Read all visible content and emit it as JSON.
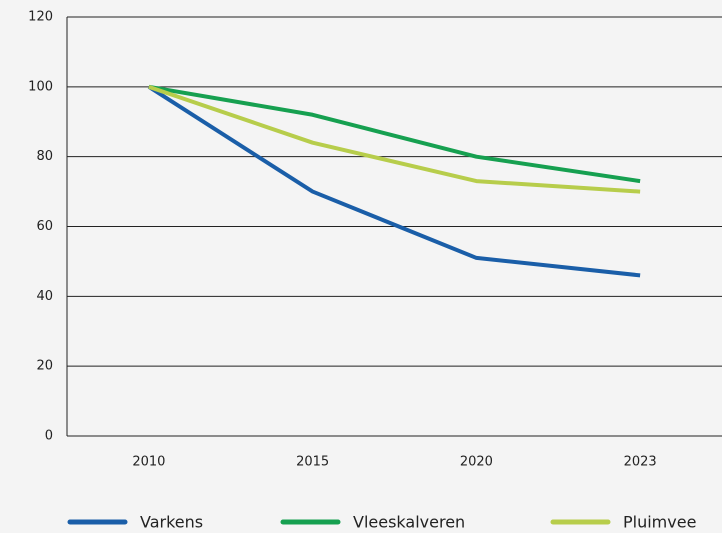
{
  "chart_data": {
    "type": "line",
    "categories": [
      "2010",
      "2015",
      "2020",
      "2023"
    ],
    "series": [
      {
        "name": "Varkens",
        "color": "#1a5ea8",
        "values": [
          100,
          70,
          51,
          46
        ]
      },
      {
        "name": "Vleeskalveren",
        "color": "#16a050",
        "values": [
          100,
          92,
          80,
          73
        ]
      },
      {
        "name": "Pluimvee",
        "color": "#b7cd4b",
        "values": [
          100,
          84,
          73,
          70
        ]
      }
    ],
    "ylim": [
      0,
      120
    ],
    "yticks": [
      0,
      20,
      40,
      60,
      80,
      100,
      120
    ],
    "grid": true,
    "legend": "bottom"
  }
}
